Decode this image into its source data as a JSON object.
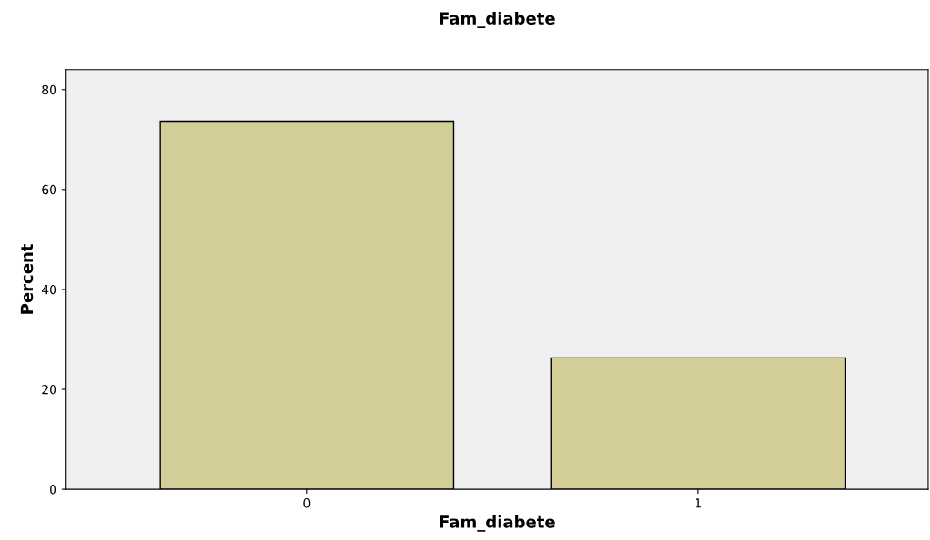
{
  "chart_data": {
    "type": "bar",
    "title": "Fam_diabete",
    "xlabel": "Fam_diabete",
    "ylabel": "Percent",
    "categories": [
      "0",
      "1"
    ],
    "values": [
      73.7,
      26.3
    ],
    "color": "#d3cd98",
    "ylim": [
      0,
      84
    ],
    "yticks": [
      0,
      20,
      40,
      60,
      80
    ],
    "grid": false,
    "legend": false
  }
}
